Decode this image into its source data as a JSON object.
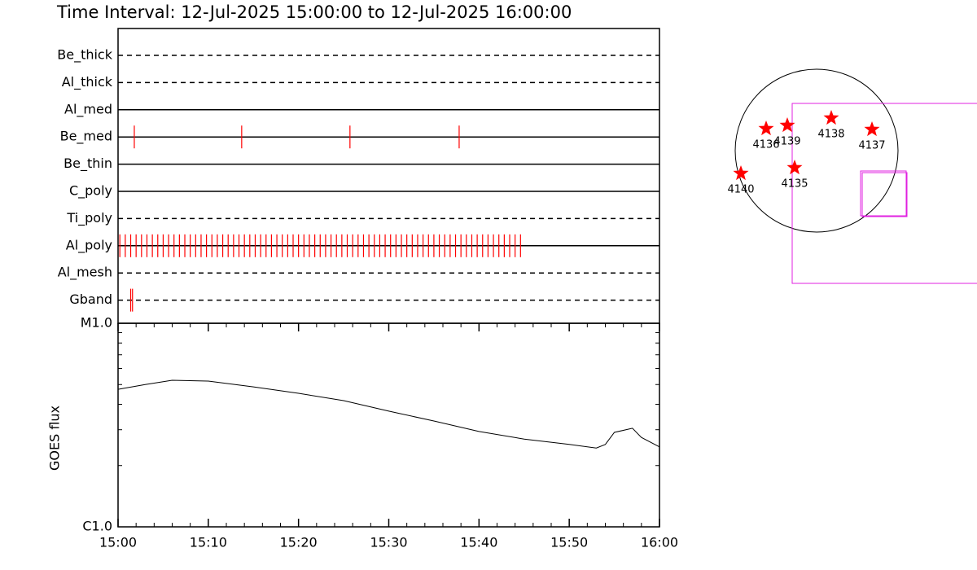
{
  "chart_data": [
    {
      "type": "timeline",
      "title": "Time Interval: 12-Jul-2025 15:00:00 to 12-Jul-2025 16:00:00",
      "categories": [
        "Be_thick",
        "Al_thick",
        "Al_med",
        "Be_med",
        "Be_thin",
        "C_poly",
        "Ti_poly",
        "Al_poly",
        "Al_mesh",
        "Gband"
      ],
      "styles": [
        "dashed",
        "dashed",
        "solid",
        "solid",
        "solid",
        "solid",
        "dashed",
        "solid",
        "dashed",
        "dashed"
      ],
      "events": [
        [],
        [],
        [],
        [
          1.8,
          13.7,
          25.7,
          37.8
        ],
        [],
        [],
        [],
        [
          0.2,
          0.8,
          1.4,
          2,
          2.6,
          3.2,
          3.8,
          4.4,
          5,
          5.6,
          6.2,
          6.8,
          7.4,
          8,
          8.6,
          9.2,
          9.8,
          10.4,
          11,
          11.6,
          12.2,
          12.8,
          13.4,
          14,
          14.6,
          15.2,
          15.8,
          16.4,
          17,
          17.6,
          18.2,
          18.8,
          19.4,
          20,
          20.6,
          21.2,
          21.8,
          22.4,
          23,
          23.6,
          24.2,
          24.8,
          25.4,
          26,
          26.6,
          27.2,
          27.8,
          28.4,
          29,
          29.6,
          30.2,
          30.8,
          31.4,
          32,
          32.6,
          33.2,
          33.8,
          34.4,
          35,
          35.6,
          36.2,
          36.8,
          37.4,
          38,
          38.6,
          39.2,
          39.8,
          40.4,
          41,
          41.6,
          42.2,
          42.8,
          43.4,
          44,
          44.6
        ],
        [],
        [
          1.4,
          1.6
        ]
      ],
      "color": "#ff0000",
      "xlim": [
        0,
        60
      ]
    },
    {
      "type": "line",
      "y_label": "GOES flux",
      "x": [
        0,
        3,
        6,
        10,
        15,
        20,
        25,
        30,
        35,
        40,
        45,
        50,
        53,
        54,
        55,
        57,
        58,
        60
      ],
      "values": [
        4.74e-06,
        5e-06,
        5.25e-06,
        5.2e-06,
        4.87e-06,
        4.53e-06,
        4.17e-06,
        3.7e-06,
        3.31e-06,
        2.94e-06,
        2.7e-06,
        2.54e-06,
        2.44e-06,
        2.54e-06,
        2.91e-06,
        3.05e-06,
        2.75e-06,
        2.47e-06
      ],
      "color": "#000000",
      "log_scale": true,
      "xlim": [
        0,
        60
      ],
      "xticks": [
        {
          "value": 0,
          "label": "15:00"
        },
        {
          "value": 10,
          "label": "15:10"
        },
        {
          "value": 20,
          "label": "15:20"
        },
        {
          "value": 30,
          "label": "15:30"
        },
        {
          "value": 40,
          "label": "15:40"
        },
        {
          "value": 50,
          "label": "15:50"
        },
        {
          "value": 60,
          "label": "16:00"
        }
      ],
      "xminorticks": [
        2,
        4,
        6,
        8,
        12,
        14,
        16,
        18,
        22,
        24,
        26,
        28,
        32,
        34,
        36,
        38,
        42,
        44,
        46,
        48,
        52,
        54,
        56,
        58
      ],
      "ylim": [
        1e-06,
        1e-05
      ],
      "yticks": [
        {
          "value": 1e-06,
          "label": "C1.0"
        },
        {
          "value": 1e-05,
          "label": "M1.0"
        }
      ],
      "yminorticks": [
        2e-06,
        3e-06,
        4e-06,
        5e-06,
        6e-06,
        7e-06,
        8e-06,
        9e-06
      ]
    },
    {
      "type": "map",
      "regions": [
        "4136",
        "4139",
        "4138",
        "4137",
        "4140",
        "4135"
      ],
      "color": "#ff0000",
      "box_color": "#e020e0"
    }
  ]
}
